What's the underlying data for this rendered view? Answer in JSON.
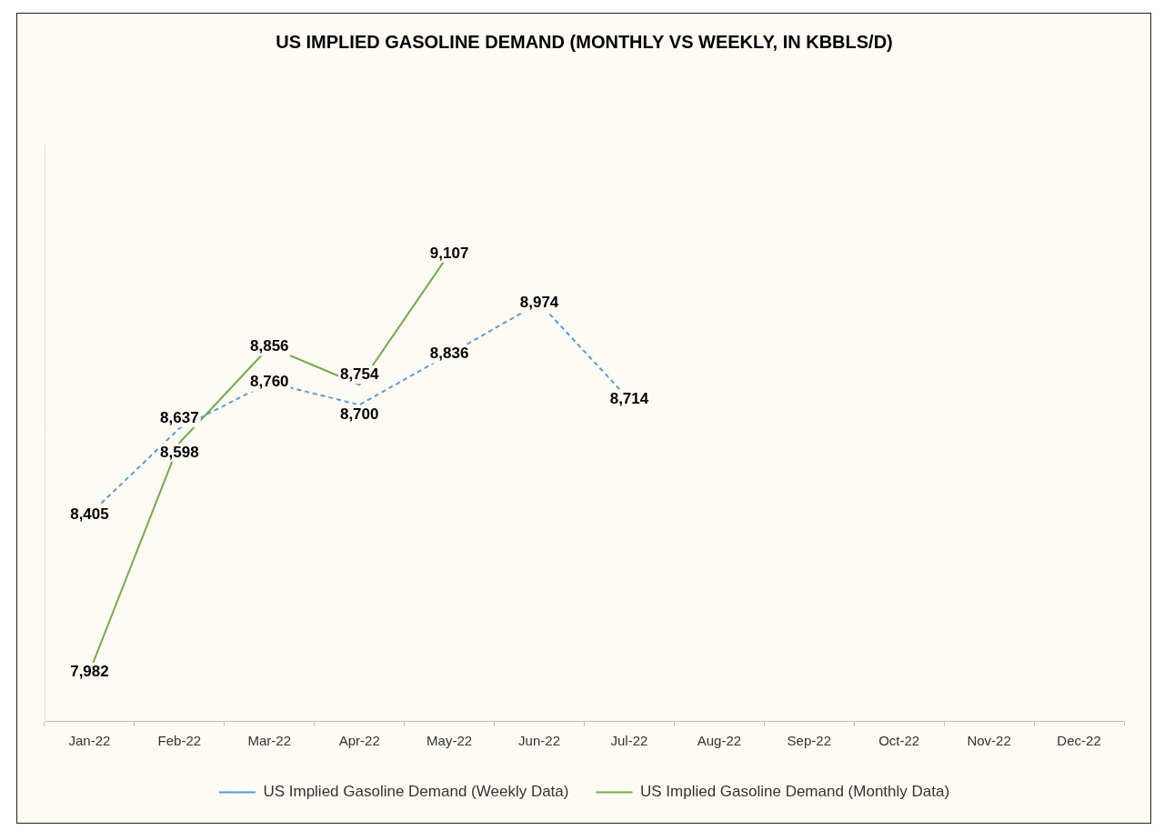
{
  "chart_data": {
    "type": "line",
    "title": "US IMPLIED GASOLINE DEMAND (MONTHLY VS WEEKLY, IN KBBLS/D)",
    "categories": [
      "Jan-22",
      "Feb-22",
      "Mar-22",
      "Apr-22",
      "May-22",
      "Jun-22",
      "Jul-22",
      "Aug-22",
      "Sep-22",
      "Oct-22",
      "Nov-22",
      "Dec-22"
    ],
    "series": [
      {
        "name": "US Implied Gasoline Demand (Weekly Data)",
        "color": "#5b9bd5",
        "line_style": "dashed",
        "marker": "none",
        "values": [
          8405,
          8637,
          8760,
          8700,
          8836,
          8974,
          8714,
          null,
          null,
          null,
          null,
          null
        ],
        "value_labels": [
          "8,405",
          "8,637",
          "8,760",
          "8,700",
          "8,836",
          "8,974",
          "8,714",
          null,
          null,
          null,
          null,
          null
        ]
      },
      {
        "name": "US Implied Gasoline Demand (Monthly Data)",
        "color": "#70ad47",
        "line_style": "solid",
        "marker": "none",
        "values": [
          7982,
          8598,
          8856,
          8754,
          9107,
          null,
          null,
          null,
          null,
          null,
          null,
          null
        ],
        "value_labels": [
          "7,982",
          "8,598",
          "8,856",
          "8,754",
          "9,107",
          null,
          null,
          null,
          null,
          null,
          null,
          null
        ]
      }
    ],
    "ylim": [
      7850,
      9400
    ],
    "grid": false,
    "legend": "bottom",
    "data_labels": true,
    "tick_labels": "x"
  }
}
